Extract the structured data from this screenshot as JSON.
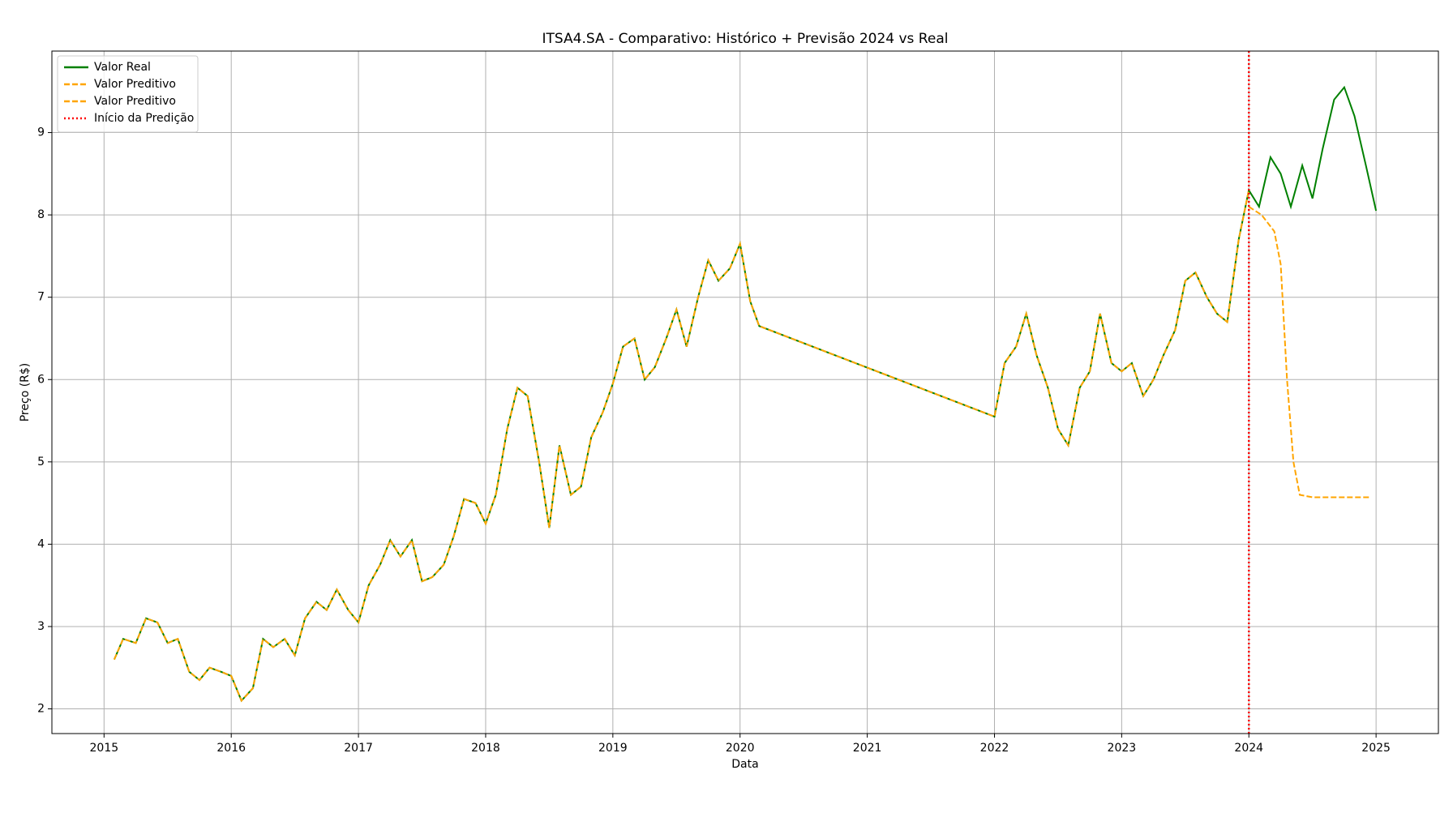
{
  "chart_data": {
    "type": "line",
    "title": "ITSA4.SA - Comparativo: Histórico + Previsão 2024 vs Real",
    "xlabel": "Data",
    "ylabel": "Preço (R$)",
    "xlim": [
      2014.59,
      2025.49
    ],
    "xticks": [
      2015,
      2016,
      2017,
      2018,
      2019,
      2020,
      2021,
      2022,
      2023,
      2024,
      2025
    ],
    "ylim": [
      1.7,
      9.99
    ],
    "yticks": [
      2,
      3,
      4,
      5,
      6,
      7,
      8,
      9
    ],
    "grid": true,
    "legend": "upper left",
    "series": [
      {
        "name": "Valor Real",
        "color": "green",
        "style": "solid",
        "x": [
          2015.08,
          2015.15,
          2015.25,
          2015.33,
          2015.42,
          2015.5,
          2015.58,
          2015.67,
          2015.75,
          2015.83,
          2015.92,
          2016.0,
          2016.08,
          2016.17,
          2016.25,
          2016.33,
          2016.42,
          2016.5,
          2016.58,
          2016.67,
          2016.75,
          2016.83,
          2016.92,
          2017.0,
          2017.08,
          2017.17,
          2017.25,
          2017.33,
          2017.42,
          2017.5,
          2017.58,
          2017.67,
          2017.75,
          2017.83,
          2017.92,
          2018.0,
          2018.08,
          2018.17,
          2018.25,
          2018.33,
          2018.42,
          2018.5,
          2018.58,
          2018.67,
          2018.75,
          2018.83,
          2018.92,
          2019.0,
          2019.08,
          2019.17,
          2019.25,
          2019.33,
          2019.42,
          2019.5,
          2019.58,
          2019.67,
          2019.75,
          2019.83,
          2019.92,
          2020.0,
          2020.08,
          2020.15,
          2022.0,
          2022.08,
          2022.17,
          2022.25,
          2022.33,
          2022.42,
          2022.5,
          2022.58,
          2022.67,
          2022.75,
          2022.83,
          2022.92,
          2023.0,
          2023.08,
          2023.17,
          2023.25,
          2023.33,
          2023.42,
          2023.5,
          2023.58,
          2023.67,
          2023.75,
          2023.83,
          2023.92,
          2024.0,
          2024.08,
          2024.17,
          2024.25,
          2024.33,
          2024.42,
          2024.5,
          2024.58,
          2024.67,
          2024.75,
          2024.83,
          2024.92,
          2025.0
        ],
        "values": [
          2.6,
          2.85,
          2.8,
          3.1,
          3.05,
          2.8,
          2.85,
          2.45,
          2.35,
          2.5,
          2.45,
          2.4,
          2.1,
          2.25,
          2.85,
          2.75,
          2.85,
          2.65,
          3.1,
          3.3,
          3.2,
          3.45,
          3.2,
          3.05,
          3.5,
          3.75,
          4.05,
          3.85,
          4.05,
          3.55,
          3.6,
          3.75,
          4.1,
          4.55,
          4.5,
          4.25,
          4.6,
          5.4,
          5.9,
          5.8,
          5.0,
          4.2,
          5.2,
          4.6,
          4.7,
          5.3,
          5.6,
          5.95,
          6.4,
          6.5,
          6.0,
          6.15,
          6.5,
          6.85,
          6.4,
          7.0,
          7.45,
          7.2,
          7.35,
          7.65,
          6.95,
          6.65,
          5.55,
          6.2,
          6.4,
          6.8,
          6.3,
          5.9,
          5.4,
          5.2,
          5.9,
          6.1,
          6.8,
          6.2,
          6.1,
          6.2,
          5.8,
          6.0,
          6.3,
          6.6,
          7.2,
          7.3,
          7.0,
          6.8,
          6.7,
          7.7,
          8.3,
          8.1,
          8.7,
          8.5,
          8.1,
          8.6,
          8.2,
          8.8,
          9.4,
          9.55,
          9.2,
          8.6,
          8.05
        ]
      },
      {
        "name": "Valor Preditivo",
        "color": "orange",
        "style": "dashed",
        "x": [
          2015.08,
          2015.15,
          2015.25,
          2015.33,
          2015.42,
          2015.5,
          2015.58,
          2015.67,
          2015.75,
          2015.83,
          2015.92,
          2016.0,
          2016.08,
          2016.17,
          2016.25,
          2016.33,
          2016.42,
          2016.5,
          2016.58,
          2016.67,
          2016.75,
          2016.83,
          2016.92,
          2017.0,
          2017.08,
          2017.17,
          2017.25,
          2017.33,
          2017.42,
          2017.5,
          2017.58,
          2017.67,
          2017.75,
          2017.83,
          2017.92,
          2018.0,
          2018.08,
          2018.17,
          2018.25,
          2018.33,
          2018.42,
          2018.5,
          2018.58,
          2018.67,
          2018.75,
          2018.83,
          2018.92,
          2019.0,
          2019.08,
          2019.17,
          2019.25,
          2019.33,
          2019.42,
          2019.5,
          2019.58,
          2019.67,
          2019.75,
          2019.83,
          2019.92,
          2020.0,
          2020.08,
          2020.15,
          2022.0,
          2022.08,
          2022.17,
          2022.25,
          2022.33,
          2022.42,
          2022.5,
          2022.58,
          2022.67,
          2022.75,
          2022.83,
          2022.92,
          2023.0,
          2023.08,
          2023.17,
          2023.25,
          2023.33,
          2023.42,
          2023.5,
          2023.58,
          2023.67,
          2023.75,
          2023.83,
          2023.92,
          2024.0
        ],
        "values": [
          2.6,
          2.85,
          2.8,
          3.1,
          3.05,
          2.8,
          2.85,
          2.45,
          2.35,
          2.5,
          2.45,
          2.4,
          2.1,
          2.25,
          2.85,
          2.75,
          2.85,
          2.65,
          3.1,
          3.3,
          3.2,
          3.45,
          3.2,
          3.05,
          3.5,
          3.75,
          4.05,
          3.85,
          4.05,
          3.55,
          3.6,
          3.75,
          4.1,
          4.55,
          4.5,
          4.25,
          4.6,
          5.4,
          5.9,
          5.8,
          5.0,
          4.2,
          5.2,
          4.6,
          4.7,
          5.3,
          5.6,
          5.95,
          6.4,
          6.5,
          6.0,
          6.15,
          6.5,
          6.85,
          6.4,
          7.0,
          7.45,
          7.2,
          7.35,
          7.65,
          6.95,
          6.65,
          5.55,
          6.2,
          6.4,
          6.8,
          6.3,
          5.9,
          5.4,
          5.2,
          5.9,
          6.1,
          6.8,
          6.2,
          6.1,
          6.2,
          5.8,
          6.0,
          6.3,
          6.6,
          7.2,
          7.3,
          7.0,
          6.8,
          6.7,
          7.7,
          8.3
        ]
      },
      {
        "name": "Valor Preditivo",
        "color": "orange",
        "style": "dashed",
        "x": [
          2024.0,
          2024.1,
          2024.2,
          2024.25,
          2024.3,
          2024.35,
          2024.4,
          2024.5,
          2024.95
        ],
        "values": [
          8.1,
          8.0,
          7.8,
          7.4,
          6.0,
          5.0,
          4.6,
          4.57,
          4.57
        ]
      }
    ],
    "vlines": [
      {
        "name": "Início da Predição",
        "x": 2024,
        "color": "red",
        "style": "dotted"
      }
    ]
  }
}
